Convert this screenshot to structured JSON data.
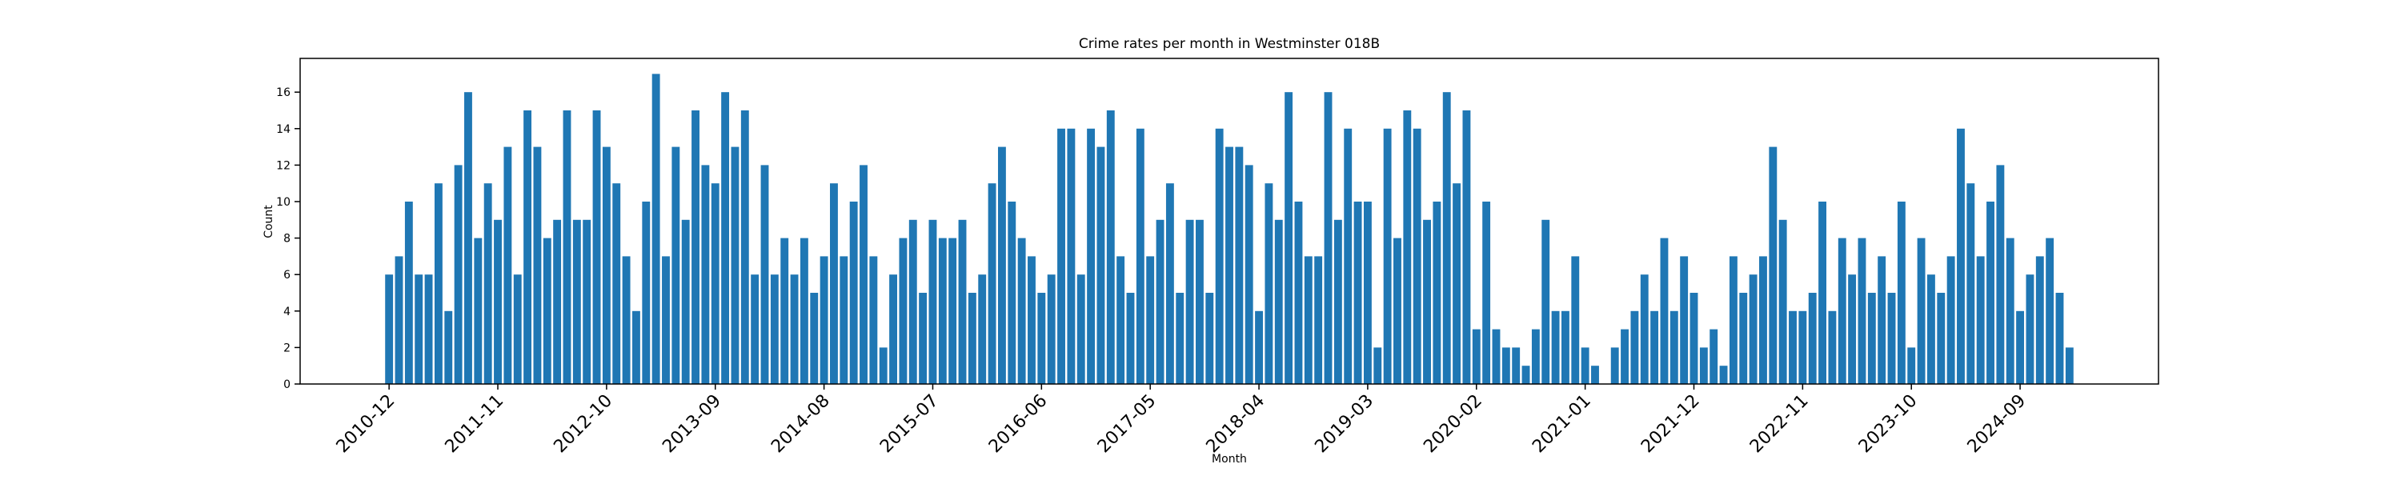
{
  "chart_data": {
    "type": "bar",
    "title": "Crime rates per month in Westminster 018B",
    "xlabel": "Month",
    "ylabel": "Count",
    "color": "#1f77b4",
    "categories": [
      "2010-12",
      null,
      null,
      null,
      null,
      null,
      null,
      null,
      null,
      null,
      null,
      "2011-11",
      null,
      null,
      null,
      null,
      null,
      null,
      null,
      null,
      null,
      null,
      "2012-10",
      null,
      null,
      null,
      null,
      null,
      null,
      null,
      null,
      null,
      null,
      "2013-09",
      null,
      null,
      null,
      null,
      null,
      null,
      null,
      null,
      null,
      null,
      "2014-08",
      null,
      null,
      null,
      null,
      null,
      null,
      null,
      null,
      null,
      null,
      "2015-07",
      null,
      null,
      null,
      null,
      null,
      null,
      null,
      null,
      null,
      null,
      "2016-06",
      null,
      null,
      null,
      null,
      null,
      null,
      null,
      null,
      null,
      null,
      "2017-05",
      null,
      null,
      null,
      null,
      null,
      null,
      null,
      null,
      null,
      null,
      "2018-04",
      null,
      null,
      null,
      null,
      null,
      null,
      null,
      null,
      null,
      null,
      "2019-03",
      null,
      null,
      null,
      null,
      null,
      null,
      null,
      null,
      null,
      null,
      "2020-02",
      null,
      null,
      null,
      null,
      null,
      null,
      null,
      null,
      null,
      null,
      "2021-01",
      null,
      null,
      null,
      null,
      null,
      null,
      null,
      null,
      null,
      null,
      "2021-12",
      null,
      null,
      null,
      null,
      null,
      null,
      null,
      null,
      null,
      null,
      "2022-11",
      null,
      null,
      null,
      null,
      null,
      null,
      null,
      null,
      null,
      null,
      "2023-10",
      null,
      null,
      null,
      null,
      null,
      null,
      null,
      null,
      null,
      null,
      "2024-09",
      null,
      null,
      null,
      null,
      null
    ],
    "values": [
      6,
      7,
      10,
      6,
      6,
      11,
      4,
      12,
      16,
      8,
      11,
      9,
      13,
      6,
      15,
      13,
      8,
      9,
      15,
      9,
      9,
      15,
      13,
      11,
      7,
      4,
      10,
      17,
      7,
      13,
      9,
      15,
      12,
      11,
      16,
      13,
      15,
      6,
      12,
      6,
      8,
      6,
      8,
      5,
      7,
      11,
      7,
      10,
      12,
      7,
      2,
      6,
      8,
      9,
      5,
      9,
      8,
      8,
      9,
      5,
      6,
      11,
      13,
      10,
      8,
      7,
      5,
      6,
      14,
      14,
      6,
      14,
      13,
      15,
      7,
      5,
      14,
      7,
      9,
      11,
      5,
      9,
      9,
      5,
      14,
      13,
      13,
      12,
      4,
      11,
      9,
      16,
      10,
      7,
      7,
      16,
      9,
      14,
      10,
      10,
      2,
      14,
      8,
      15,
      14,
      9,
      10,
      16,
      11,
      15,
      3,
      10,
      3,
      2,
      2,
      1,
      3,
      9,
      4,
      4,
      7,
      2,
      1,
      0,
      2,
      3,
      4,
      6,
      4,
      8,
      4,
      7,
      5,
      2,
      3,
      1,
      7,
      5,
      6,
      7,
      13,
      9,
      4,
      4,
      5,
      10,
      4,
      8,
      6,
      8,
      5,
      7,
      5,
      10,
      2,
      8,
      6,
      5,
      7,
      14,
      11,
      7,
      10,
      12,
      8,
      4,
      6,
      7,
      8,
      5,
      2
    ],
    "ylim": [
      0,
      17.85
    ],
    "yticks": [
      0,
      2,
      4,
      6,
      8,
      10,
      12,
      14,
      16
    ]
  }
}
